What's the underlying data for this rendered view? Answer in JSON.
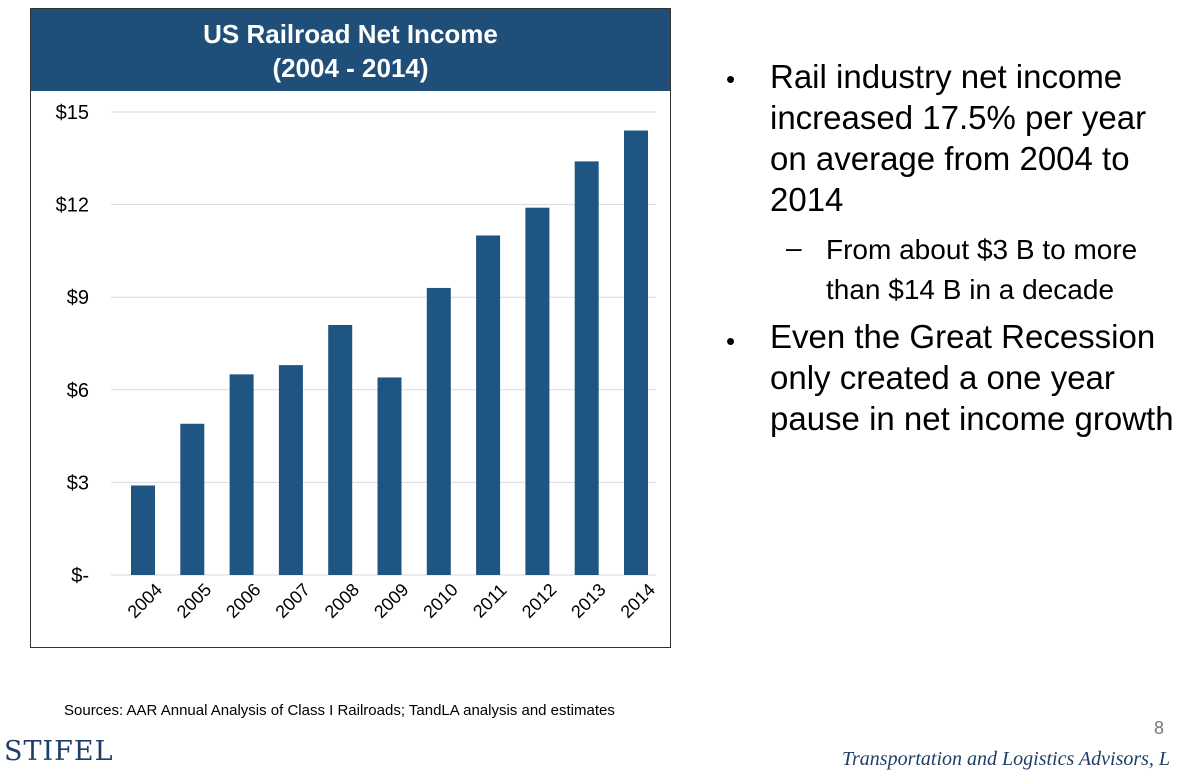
{
  "chart_data": {
    "type": "bar",
    "title": "US Railroad Net Income",
    "subtitle": "(2004 - 2014)",
    "categories": [
      "2004",
      "2005",
      "2006",
      "2007",
      "2008",
      "2009",
      "2010",
      "2011",
      "2012",
      "2013",
      "2014"
    ],
    "values": [
      2.9,
      4.9,
      6.5,
      6.8,
      8.1,
      6.4,
      9.3,
      11.0,
      11.9,
      13.4,
      14.4
    ],
    "yticks": [
      "$-",
      "$3",
      "$6",
      "$9",
      "$12",
      "$15"
    ],
    "ylim": [
      0,
      15
    ],
    "grid": true,
    "color": "#1f5582"
  },
  "bullets": [
    {
      "lines": [
        "Rail industry net income",
        "increased 17.5% per year",
        "on average from 2004 to",
        "2014"
      ]
    },
    {
      "lines": [
        "Even the Great Recession",
        "only created a one year",
        "pause in net income growth"
      ]
    }
  ],
  "sub_bullet": {
    "dash": "–",
    "lines": [
      "From about $3 B to more",
      "than $14 B in a decade"
    ]
  },
  "bullet_symbol": "•",
  "sources": "Sources: AAR Annual Analysis of Class I Railroads; TandLA analysis and estimates",
  "page_number": "8",
  "logo": "STIFEL",
  "footer_tag": "Transportation and Logistics Advisors, L"
}
